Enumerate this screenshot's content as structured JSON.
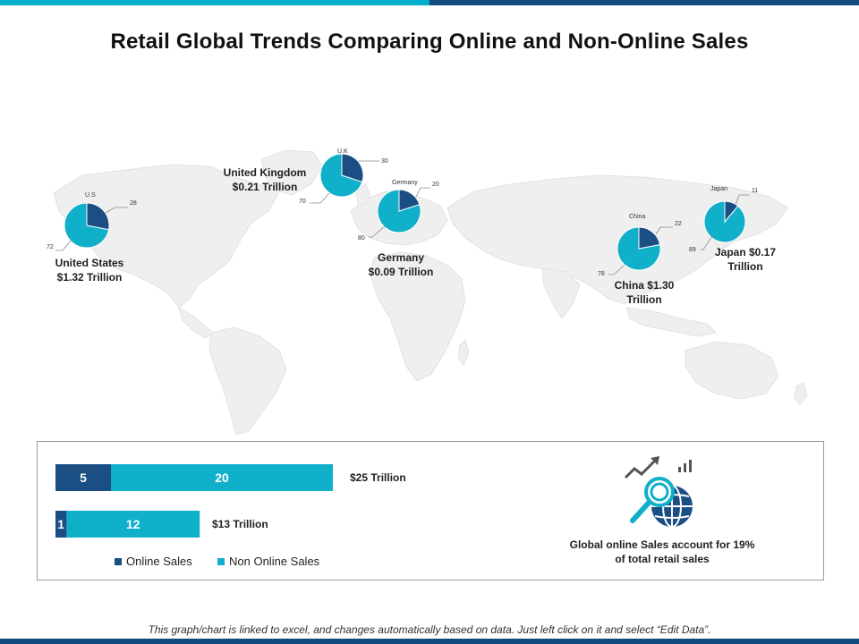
{
  "title": "Retail Global Trends Comparing Online and Non-Online Sales",
  "colors": {
    "online": "#1b4f84",
    "non_online": "#10afca",
    "map": "#efefef",
    "accent_bar": "#00afcb"
  },
  "regions": [
    {
      "id": "us",
      "pie_title": "U.S",
      "label_line1": "United States",
      "label_line2": "$1.32 Trillion",
      "online": 28,
      "non_online": 72
    },
    {
      "id": "uk",
      "pie_title": "U.K",
      "label_line1": "United Kingdom",
      "label_line2": "$0.21 Trillion",
      "online": 30,
      "non_online": 70
    },
    {
      "id": "germany",
      "pie_title": "Germany",
      "label_line1": "Germany",
      "label_line2": "$0.09 Trillion",
      "online": 20,
      "non_online": 80
    },
    {
      "id": "china",
      "pie_title": "China",
      "label_line1": "China $1.30",
      "label_line2": "Trillion",
      "online": 22,
      "non_online": 78
    },
    {
      "id": "japan",
      "pie_title": "Japan",
      "label_line1": "Japan $0.17",
      "label_line2": "Trillion",
      "online": 11,
      "non_online": 89
    }
  ],
  "chart_data": [
    {
      "type": "pie",
      "categories": [
        "U.S",
        "U.K",
        "Germany",
        "China",
        "Japan"
      ],
      "series": [
        {
          "name": "Online Sales",
          "values": [
            28,
            30,
            20,
            22,
            11
          ]
        },
        {
          "name": "Non Online Sales",
          "values": [
            72,
            70,
            80,
            78,
            89
          ]
        }
      ]
    },
    {
      "type": "bar",
      "orientation": "horizontal",
      "stacked": true,
      "categories": [
        "$25 Trillion",
        "$13 Trillion"
      ],
      "series": [
        {
          "name": "Online Sales",
          "values": [
            5,
            1
          ]
        },
        {
          "name": "Non Online Sales",
          "values": [
            20,
            12
          ]
        }
      ],
      "legend": [
        "Online Sales",
        "Non Online Sales"
      ],
      "legend_position": "bottom"
    }
  ],
  "summary": {
    "line1": "Global online Sales account for 19%",
    "line2": "of total retail sales",
    "icon": "globe-search-growth-icon"
  },
  "footnote": "This graph/chart is linked to excel, and changes automatically based on data. Just left click on it and select “Edit Data”."
}
